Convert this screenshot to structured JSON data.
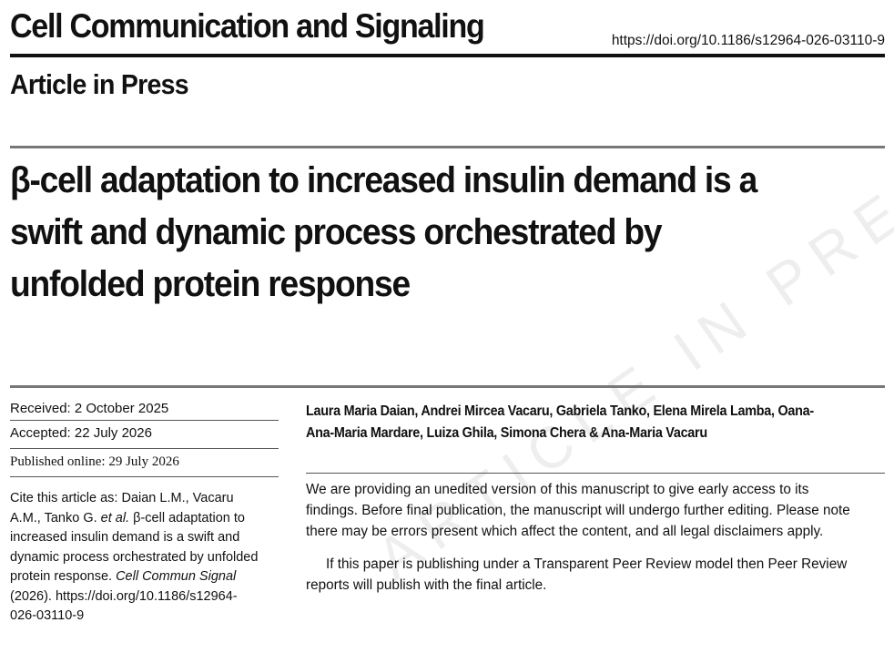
{
  "header": {
    "journal": "Cell Communication and Signaling",
    "doi": "https://doi.org/10.1186/s12964-026-03110-9",
    "status": "Article in Press"
  },
  "title": "β-cell adaptation to increased insulin demand is a swift and dynamic process orchestrated by unfolded protein response",
  "dates": {
    "received": "Received: 2 October 2025",
    "accepted": "Accepted: 22 July 2026",
    "published": "Published online: 29 July 2026"
  },
  "citation": {
    "lead": "Cite this article as: Daian L.M., Vacaru A.M., Tanko G.",
    "et_al": "et al.",
    "body": "β-cell adaptation to increased insulin demand is a swift and dynamic process orchestrated by unfolded protein response.",
    "journal_abbrev": "Cell Commun Signal",
    "tail": "(2026). https://doi.org/10.1186/s12964-026-03110-9"
  },
  "authors": "Laura Maria Daian, Andrei Mircea Vacaru, Gabriela Tanko, Elena Mirela Lamba, Oana-Ana-Maria Mardare, Luiza Ghila, Simona Chera & Ana-Maria Vacaru",
  "notice": {
    "p1": "We are providing an unedited version of this manuscript to give early access to its findings. Before final publication, the manuscript will undergo further editing. Please note there may be errors present which affect the content, and all legal disclaimers apply.",
    "p2": "If this paper is publishing under a Transparent Peer Review model then Peer Review reports will publish with the final article."
  },
  "watermark": "ARTICLE IN PRESS"
}
